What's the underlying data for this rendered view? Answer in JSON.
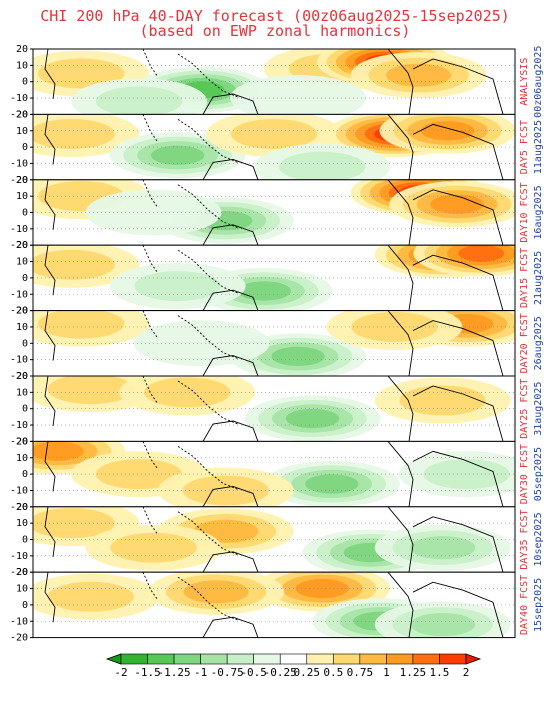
{
  "title_line1": "CHI 200 hPa 40-DAY forecast (00z06aug2025-15sep2025)",
  "title_line2": "(based on EWP zonal harmonics)",
  "y_ticks": [
    "20",
    "10",
    "0",
    "-10",
    "-20"
  ],
  "panels": [
    {
      "label": "ANALYSIS",
      "date": "00z06aug2025"
    },
    {
      "label": "DAY5 FCST",
      "date": "11aug2025"
    },
    {
      "label": "DAY10 FCST",
      "date": "16aug2025"
    },
    {
      "label": "DAY15 FCST",
      "date": "21aug2025"
    },
    {
      "label": "DAY20 FCST",
      "date": "26aug2025"
    },
    {
      "label": "DAY25 FCST",
      "date": "31aug2025"
    },
    {
      "label": "DAY30 FCST",
      "date": "05sep2025"
    },
    {
      "label": "DAY35 FCST",
      "date": "10sep2025"
    },
    {
      "label": "DAY40 FCST",
      "date": "15sep2025"
    }
  ],
  "colorbar": {
    "ticks": [
      "-2",
      "-1.5",
      "-1.25",
      "-1",
      "-0.75",
      "-0.5",
      "-0.25",
      "0.25",
      "0.5",
      "0.75",
      "1",
      "1.25",
      "1.5",
      "2"
    ],
    "colors": [
      "#1a9a1a",
      "#32b432",
      "#55c855",
      "#7ed67e",
      "#a6e4a6",
      "#c8f0c8",
      "#e6f8e6",
      "#ffffff",
      "#fff2b0",
      "#ffd870",
      "#ffb840",
      "#ff9a20",
      "#ff6e10",
      "#ff3c00",
      "#e81c00"
    ]
  },
  "chart_data": {
    "type": "heatmap",
    "title": "CHI 200 hPa 40-DAY forecast (00z06aug2025-15sep2025)",
    "subtitle": "(based on EWP zonal harmonics)",
    "ylabel": "",
    "ylim": [
      -20,
      20
    ],
    "y_ticks": [
      20,
      10,
      0,
      -10,
      -20
    ],
    "panels": [
      "ANALYSIS 00z06aug2025",
      "DAY5 FCST 11aug2025",
      "DAY10 FCST 16aug2025",
      "DAY15 FCST 21aug2025",
      "DAY20 FCST 26aug2025",
      "DAY25 FCST 31aug2025",
      "DAY30 FCST 05sep2025",
      "DAY35 FCST 10sep2025",
      "DAY40 FCST 15sep2025"
    ],
    "colorbar_levels": [
      -2,
      -1.5,
      -1.25,
      -1,
      -0.75,
      -0.5,
      -0.25,
      0.25,
      0.5,
      0.75,
      1,
      1.25,
      1.5,
      2
    ],
    "blobs": [
      [
        [
          0.1,
          5,
          0.6
        ],
        [
          0.35,
          -5,
          -1.3
        ],
        [
          0.62,
          8,
          0.7
        ],
        [
          0.73,
          12,
          1.6
        ],
        [
          0.8,
          4,
          0.9
        ],
        [
          0.22,
          -12,
          -0.5
        ],
        [
          0.55,
          -10,
          -0.4
        ]
      ],
      [
        [
          0.08,
          8,
          0.6
        ],
        [
          0.3,
          -5,
          -1.2
        ],
        [
          0.5,
          8,
          0.5
        ],
        [
          0.75,
          8,
          1.5
        ],
        [
          0.86,
          10,
          1.0
        ],
        [
          0.6,
          -12,
          -0.5
        ]
      ],
      [
        [
          0.1,
          10,
          0.6
        ],
        [
          0.4,
          -5,
          -1.1
        ],
        [
          0.8,
          12,
          1.5
        ],
        [
          0.88,
          5,
          1.0
        ],
        [
          0.25,
          0,
          -0.4
        ]
      ],
      [
        [
          0.08,
          8,
          0.5
        ],
        [
          0.48,
          -8,
          -1.1
        ],
        [
          0.85,
          14,
          1.3
        ],
        [
          0.93,
          15,
          1.3
        ],
        [
          0.3,
          -5,
          -0.5
        ]
      ],
      [
        [
          0.1,
          12,
          0.6
        ],
        [
          0.55,
          -8,
          -1.1
        ],
        [
          0.9,
          12,
          1.0
        ],
        [
          0.35,
          0,
          -0.4
        ],
        [
          0.75,
          10,
          0.5
        ]
      ],
      [
        [
          0.12,
          12,
          0.6
        ],
        [
          0.58,
          -6,
          -1.1
        ],
        [
          0.32,
          10,
          0.6
        ],
        [
          0.85,
          5,
          0.5
        ]
      ],
      [
        [
          0.05,
          14,
          1.2
        ],
        [
          0.62,
          -6,
          -1.2
        ],
        [
          0.22,
          0,
          0.5
        ],
        [
          0.4,
          -10,
          0.6
        ],
        [
          0.9,
          0,
          -0.5
        ]
      ],
      [
        [
          0.08,
          10,
          0.7
        ],
        [
          0.7,
          -8,
          -1.2
        ],
        [
          0.4,
          5,
          0.9
        ],
        [
          0.85,
          -5,
          -0.8
        ],
        [
          0.25,
          -5,
          0.5
        ]
      ],
      [
        [
          0.12,
          5,
          0.5
        ],
        [
          0.6,
          10,
          1.0
        ],
        [
          0.72,
          -10,
          -1.1
        ],
        [
          0.38,
          8,
          0.8
        ],
        [
          0.85,
          -12,
          -0.8
        ]
      ]
    ]
  }
}
